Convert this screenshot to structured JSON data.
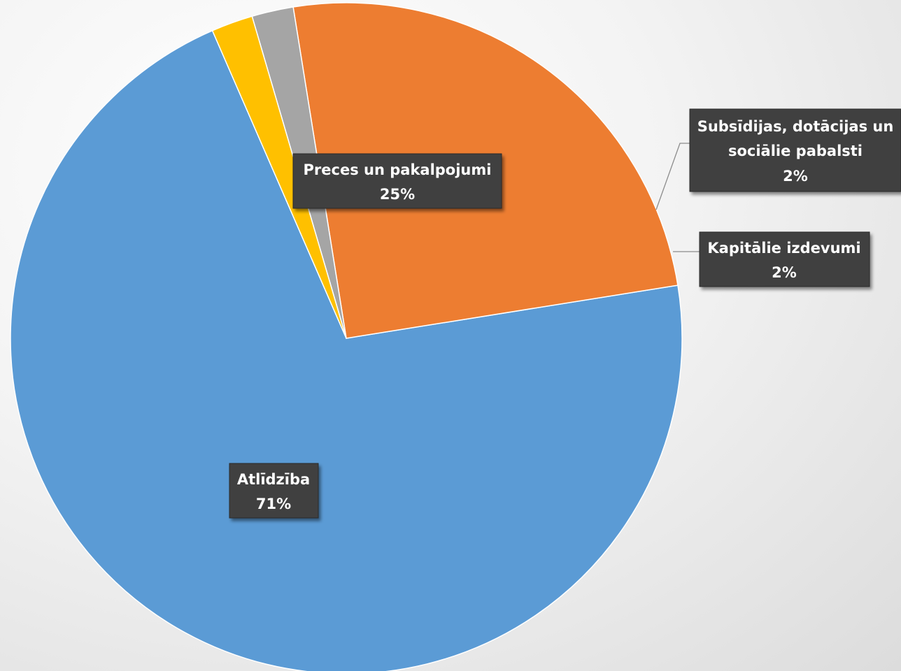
{
  "chart_data": {
    "type": "pie",
    "slices": [
      {
        "label": "Atlīdzība",
        "value": 71,
        "value_label": "71%",
        "color": "#5b9bd5"
      },
      {
        "label": "Preces un pakalpojumi",
        "value": 25,
        "value_label": "25%",
        "color": "#ed7d31"
      },
      {
        "label": "Subsīdijas, dotācijas un sociālie pabalsti",
        "value": 2,
        "value_label": "2%",
        "color": "#a5a5a5"
      },
      {
        "label": "Kapitālie izdevumi",
        "value": 2,
        "value_label": "2%",
        "color": "#ffc000"
      }
    ],
    "labels": {
      "atlidziba": {
        "line1": "Atlīdzība",
        "line2": "71%"
      },
      "preces": {
        "line1": "Preces un pakalpojumi",
        "line2": "25%"
      },
      "subsidijas": {
        "line1": "Subsīdijas, dotācijas un",
        "line2": "sociālie pabalsti",
        "line3": "2%"
      },
      "kapitalie": {
        "line1": "Kapitālie izdevumi",
        "line2": "2%"
      }
    },
    "legend": "none",
    "data_labels": "callouts"
  }
}
